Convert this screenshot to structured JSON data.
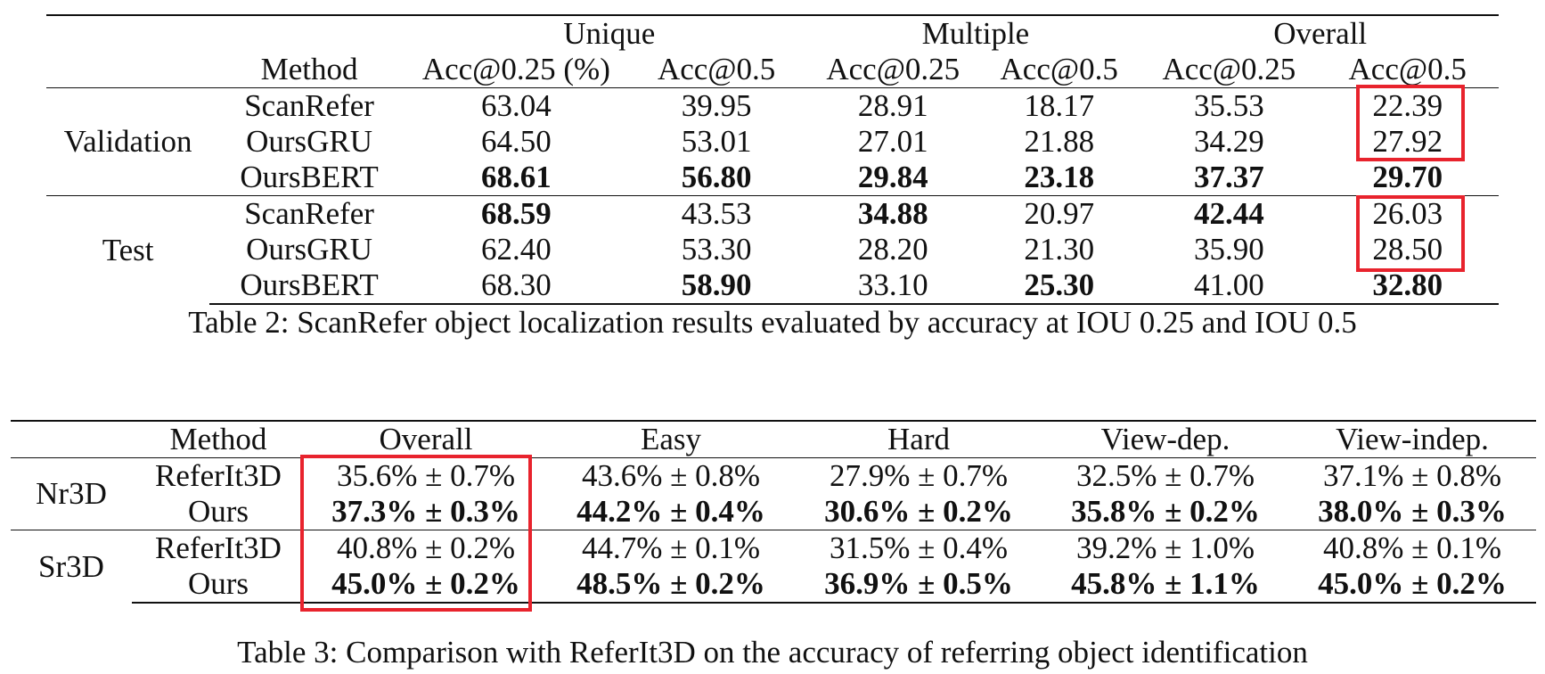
{
  "table2": {
    "group_headers": [
      "Unique",
      "Multiple",
      "Overall"
    ],
    "column_headers": [
      "Method",
      "Acc@0.25 (%)",
      "Acc@0.5",
      "Acc@0.25",
      "Acc@0.5",
      "Acc@0.25",
      "Acc@0.5"
    ],
    "sections": [
      {
        "label": "Validation",
        "rows": [
          {
            "method": "ScanRefer",
            "cells": [
              {
                "v": "63.04",
                "b": false
              },
              {
                "v": "39.95",
                "b": false
              },
              {
                "v": "28.91",
                "b": false
              },
              {
                "v": "18.17",
                "b": false
              },
              {
                "v": "35.53",
                "b": false
              },
              {
                "v": "22.39",
                "b": false
              }
            ]
          },
          {
            "method": "OursGRU",
            "cells": [
              {
                "v": "64.50",
                "b": false
              },
              {
                "v": "53.01",
                "b": false
              },
              {
                "v": "27.01",
                "b": false
              },
              {
                "v": "21.88",
                "b": false
              },
              {
                "v": "34.29",
                "b": false
              },
              {
                "v": "27.92",
                "b": false
              }
            ]
          },
          {
            "method": "OursBERT",
            "cells": [
              {
                "v": "68.61",
                "b": true
              },
              {
                "v": "56.80",
                "b": true
              },
              {
                "v": "29.84",
                "b": true
              },
              {
                "v": "23.18",
                "b": true
              },
              {
                "v": "37.37",
                "b": true
              },
              {
                "v": "29.70",
                "b": true
              }
            ]
          }
        ]
      },
      {
        "label": "Test",
        "rows": [
          {
            "method": "ScanRefer",
            "cells": [
              {
                "v": "68.59",
                "b": true
              },
              {
                "v": "43.53",
                "b": false
              },
              {
                "v": "34.88",
                "b": true
              },
              {
                "v": "20.97",
                "b": false
              },
              {
                "v": "42.44",
                "b": true
              },
              {
                "v": "26.03",
                "b": false
              }
            ]
          },
          {
            "method": "OursGRU",
            "cells": [
              {
                "v": "62.40",
                "b": false
              },
              {
                "v": "53.30",
                "b": false
              },
              {
                "v": "28.20",
                "b": false
              },
              {
                "v": "21.30",
                "b": false
              },
              {
                "v": "35.90",
                "b": false
              },
              {
                "v": "28.50",
                "b": false
              }
            ]
          },
          {
            "method": "OursBERT",
            "cells": [
              {
                "v": "68.30",
                "b": false
              },
              {
                "v": "58.90",
                "b": true
              },
              {
                "v": "33.10",
                "b": false
              },
              {
                "v": "25.30",
                "b": true
              },
              {
                "v": "41.00",
                "b": false
              },
              {
                "v": "32.80",
                "b": true
              }
            ]
          }
        ]
      }
    ],
    "caption": "Table 2: ScanRefer object localization results evaluated by accuracy at IOU 0.25 and IOU 0.5"
  },
  "table3": {
    "column_headers": [
      "Method",
      "Overall",
      "Easy",
      "Hard",
      "View-dep.",
      "View-indep."
    ],
    "sections": [
      {
        "label": "Nr3D",
        "rows": [
          {
            "method": "ReferIt3D",
            "cells": [
              {
                "v": "35.6% ± 0.7%",
                "b": false
              },
              {
                "v": "43.6% ± 0.8%",
                "b": false
              },
              {
                "v": "27.9% ± 0.7%",
                "b": false
              },
              {
                "v": "32.5% ± 0.7%",
                "b": false
              },
              {
                "v": "37.1% ± 0.8%",
                "b": false
              }
            ]
          },
          {
            "method": "Ours",
            "cells": [
              {
                "v": "37.3% ± 0.3%",
                "b": true
              },
              {
                "v": "44.2% ± 0.4%",
                "b": true
              },
              {
                "v": "30.6% ± 0.2%",
                "b": true
              },
              {
                "v": "35.8% ± 0.2%",
                "b": true
              },
              {
                "v": "38.0% ± 0.3%",
                "b": true
              }
            ]
          }
        ]
      },
      {
        "label": "Sr3D",
        "rows": [
          {
            "method": "ReferIt3D",
            "cells": [
              {
                "v": "40.8% ± 0.2%",
                "b": false
              },
              {
                "v": "44.7% ± 0.1%",
                "b": false
              },
              {
                "v": "31.5% ± 0.4%",
                "b": false
              },
              {
                "v": "39.2% ± 1.0%",
                "b": false
              },
              {
                "v": "40.8% ± 0.1%",
                "b": false
              }
            ]
          },
          {
            "method": "Ours",
            "cells": [
              {
                "v": "45.0% ± 0.2%",
                "b": true
              },
              {
                "v": "48.5% ± 0.2%",
                "b": true
              },
              {
                "v": "36.9% ± 0.5%",
                "b": true
              },
              {
                "v": "45.8% ± 1.1%",
                "b": true
              },
              {
                "v": "45.0% ± 0.2%",
                "b": true
              }
            ]
          }
        ]
      }
    ],
    "caption": "Table 3: Comparison with ReferIt3D on the accuracy of referring object identification"
  },
  "highlight_color": "#e8232d"
}
